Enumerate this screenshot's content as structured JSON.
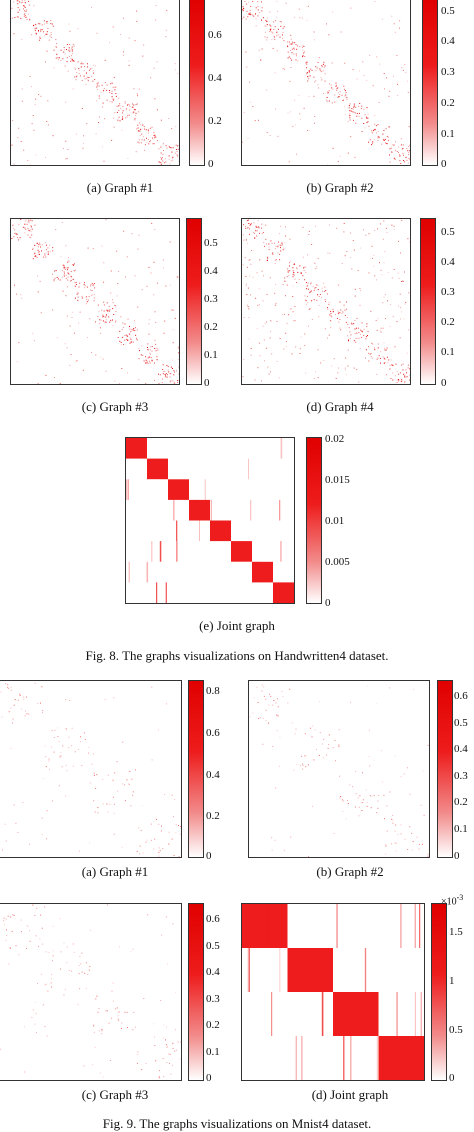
{
  "fig8": {
    "caption": "Fig. 8.   The graphs visualizations on Handwritten4 dataset.",
    "panels": [
      {
        "id": "a",
        "caption": "(a) Graph #1",
        "ticks": [
          "0.6",
          "0.4",
          "0.2",
          "0"
        ],
        "vmax": 0.75
      },
      {
        "id": "b",
        "caption": "(b) Graph #2",
        "ticks": [
          "0.5",
          "0.4",
          "0.3",
          "0.2",
          "0.1",
          "0"
        ],
        "vmax": 0.55
      },
      {
        "id": "c",
        "caption": "(c) Graph #3",
        "ticks": [
          "0.5",
          "0.4",
          "0.3",
          "0.2",
          "0.1",
          "0"
        ],
        "vmax": 0.58
      },
      {
        "id": "d",
        "caption": "(d) Graph #4",
        "ticks": [
          "0.5",
          "0.4",
          "0.3",
          "0.2",
          "0.1",
          "0"
        ],
        "vmax": 0.56
      },
      {
        "id": "e",
        "caption": "(e) Joint graph",
        "ticks": [
          "0.02",
          "0.015",
          "0.01",
          "0.005",
          "0"
        ],
        "vmax": 0.02
      }
    ]
  },
  "fig9": {
    "caption": "Fig. 9.   The graphs visualizations on Mnist4 dataset.",
    "panels": [
      {
        "id": "a",
        "caption": "(a) Graph #1",
        "ticks": [
          "0.8",
          "0.6",
          "0.4",
          "0.2",
          "0"
        ],
        "vmax": 0.84
      },
      {
        "id": "b",
        "caption": "(b) Graph #2",
        "ticks": [
          "0.6",
          "0.5",
          "0.4",
          "0.3",
          "0.2",
          "0.1",
          "0"
        ],
        "vmax": 0.67
      },
      {
        "id": "c",
        "caption": "(c) Graph #3",
        "ticks": [
          "0.6",
          "0.5",
          "0.4",
          "0.3",
          "0.2",
          "0.1",
          "0"
        ],
        "vmax": 0.67
      },
      {
        "id": "d",
        "caption": "(d) Joint graph",
        "ticks": [
          "1.5",
          "1",
          "0.5",
          "0"
        ],
        "vmax": 1.8,
        "exponent_base": "×10",
        "exponent_power": "-3"
      }
    ]
  },
  "colors": {
    "accent": "#e00000",
    "frame": "#333333"
  }
}
